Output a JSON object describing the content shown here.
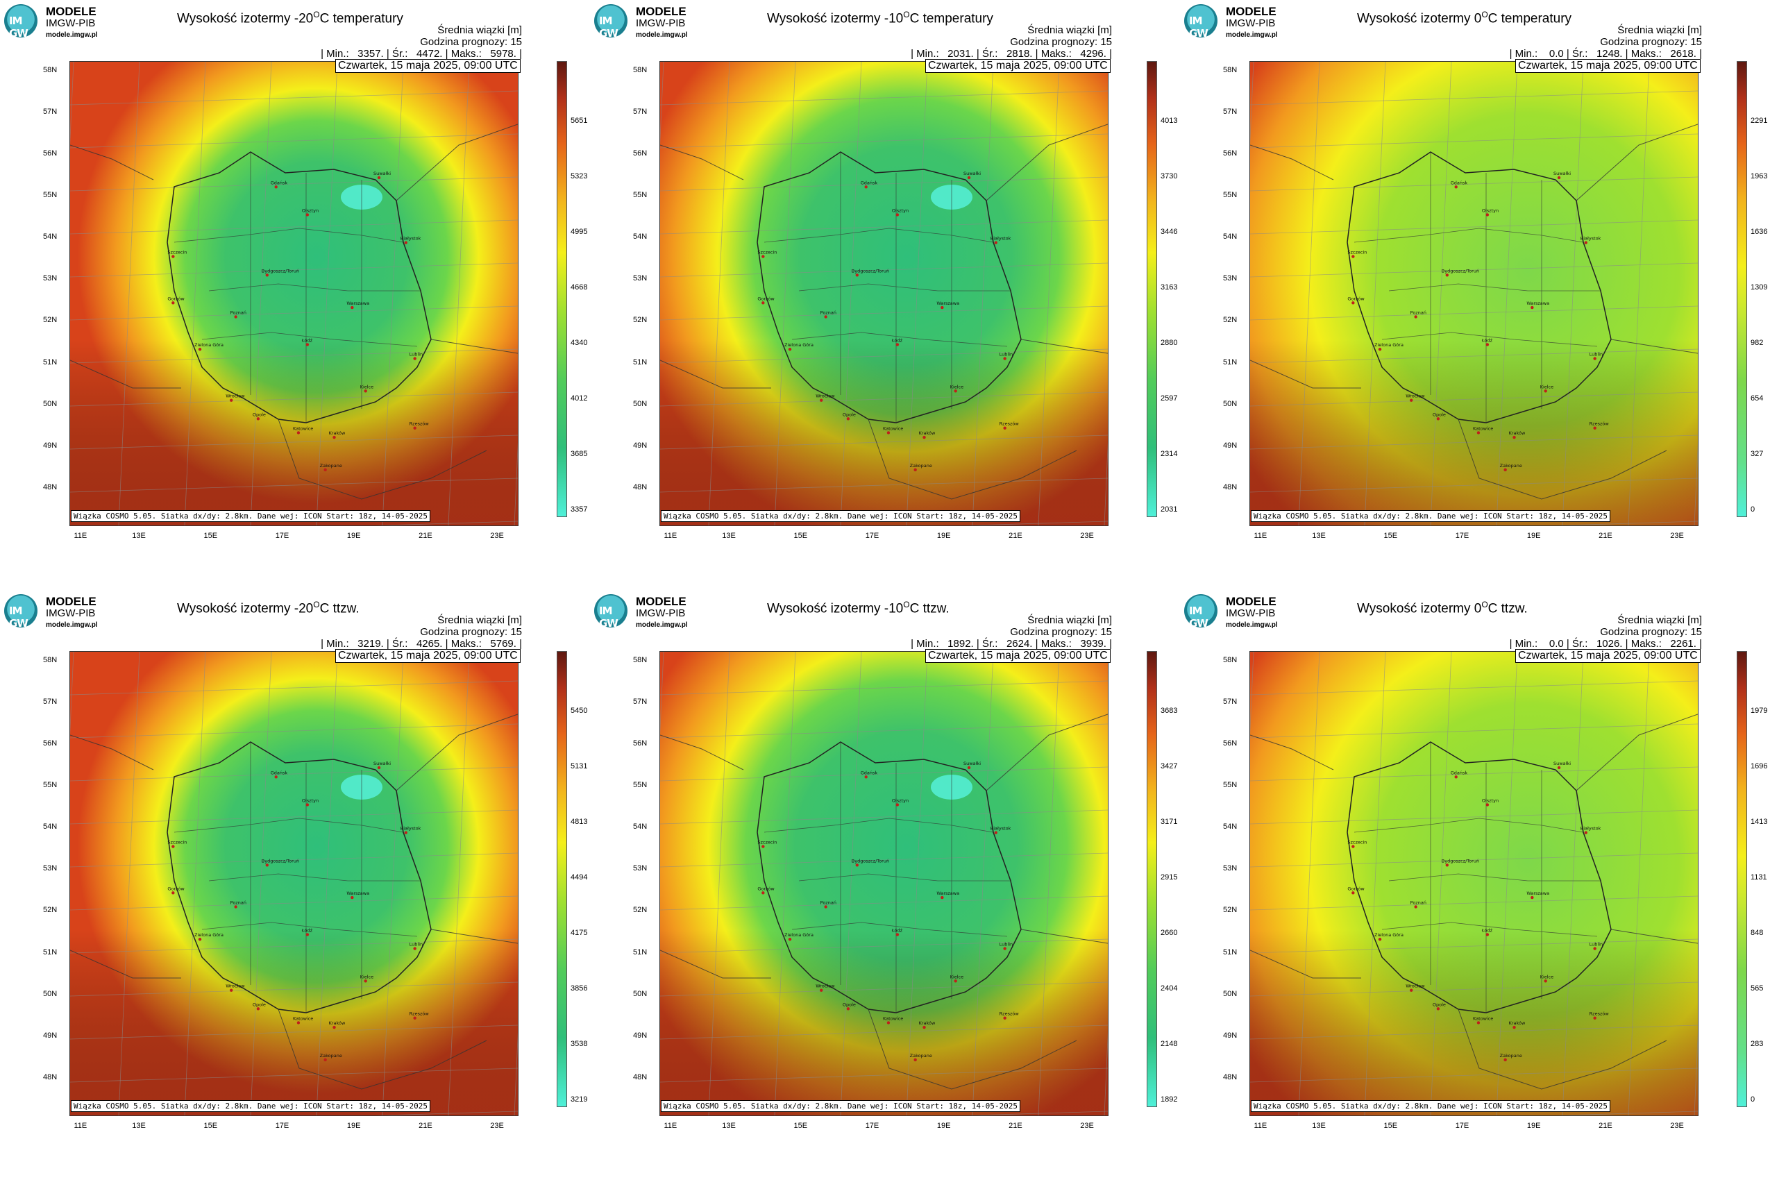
{
  "logo": {
    "line1": "MODELE",
    "line2": "IMGW-PIB",
    "line3": "modele.imgw.pl",
    "mark": "IM GW"
  },
  "panels": [
    {
      "id": "p1",
      "title_pre": "Wysokość izotermy -20",
      "title_post": "C temperatury",
      "stats_head": "Średnia wiązki [m]",
      "stats_hour": "Godzina prognozy: 15",
      "stats_vals": "| Min.:   3357. | Śr.:   4472. | Maks.:   5978. |",
      "date": "Czwartek, 15 maja 2025, 09:00 UTC",
      "footer": "Wiązka COSMO 5.05. Siatka dx/dy: 2.8km. Dane wej: ICON Start: 18z, 14-05-2025",
      "cbar": [
        "5651",
        "5323",
        "4995",
        "4668",
        "4340",
        "4012",
        "3685",
        "3357"
      ],
      "scheme": "cold",
      "core": 0.86
    },
    {
      "id": "p2",
      "title_pre": "Wysokość izotermy -10",
      "title_post": "C temperatury",
      "stats_head": "Średnia wiązki [m]",
      "stats_hour": "Godzina prognozy: 15",
      "stats_vals": "| Min.:   2031. | Śr.:   2818. | Maks.:   4296. |",
      "date": "Czwartek, 15 maja 2025, 09:00 UTC",
      "footer": "Wiązka COSMO 5.05. Siatka dx/dy: 2.8km. Dane wej: ICON Start: 18z, 14-05-2025",
      "cbar": [
        "4013",
        "3730",
        "3446",
        "3163",
        "2880",
        "2597",
        "2314",
        "2031"
      ],
      "scheme": "cold",
      "core": 1.0
    },
    {
      "id": "p3",
      "title_pre": "Wysokość izotermy 0",
      "title_post": "C temperatury",
      "stats_head": "Średnia wiązki [m]",
      "stats_hour": "Godzina prognozy: 15",
      "stats_vals": "| Min.:    0.0 | Śr.:   1248. | Maks.:   2618. |",
      "date": "Czwartek, 15 maja 2025, 09:00 UTC",
      "footer": "Wiązka COSMO 5.05. Siatka dx/dy: 2.8km. Dane wej: ICON Start: 18z, 14-05-2025",
      "cbar": [
        "2291",
        "1963",
        "1636",
        "1309",
        "982",
        "654",
        "327",
        "0"
      ],
      "scheme": "warm",
      "core": 0.7
    },
    {
      "id": "p4",
      "title_pre": "Wysokość izotermy -20",
      "title_post": "C ttzw.",
      "stats_head": "Średnia wiązki [m]",
      "stats_hour": "Godzina prognozy: 15",
      "stats_vals": "| Min.:   3219. | Śr.:   4265. | Maks.:   5769. |",
      "date": "Czwartek, 15 maja 2025, 09:00 UTC",
      "footer": "Wiązka COSMO 5.05. Siatka dx/dy: 2.8km. Dane wej: ICON Start: 18z, 14-05-2025",
      "cbar": [
        "5450",
        "5131",
        "4813",
        "4494",
        "4175",
        "3856",
        "3538",
        "3219"
      ],
      "scheme": "cold",
      "core": 0.86
    },
    {
      "id": "p5",
      "title_pre": "Wysokość izotermy -10",
      "title_post": "C ttzw.",
      "stats_head": "Średnia wiązki [m]",
      "stats_hour": "Godzina prognozy: 15",
      "stats_vals": "| Min.:   1892. | Śr.:   2624. | Maks.:   3939. |",
      "date": "Czwartek, 15 maja 2025, 09:00 UTC",
      "footer": "Wiązka COSMO 5.05. Siatka dx/dy: 2.8km. Dane wej: ICON Start: 18z, 14-05-2025",
      "cbar": [
        "3683",
        "3427",
        "3171",
        "2915",
        "2660",
        "2404",
        "2148",
        "1892"
      ],
      "scheme": "cold",
      "core": 1.05
    },
    {
      "id": "p6",
      "title_pre": "Wysokość izotermy 0",
      "title_post": "C ttzw.",
      "stats_head": "Średnia wiązki [m]",
      "stats_hour": "Godzina prognozy: 15",
      "stats_vals": "| Min.:    0.0 | Śr.:   1026. | Maks.:   2261. |",
      "date": "Czwartek, 15 maja 2025, 09:00 UTC",
      "footer": "Wiązka COSMO 5.05. Siatka dx/dy: 2.8km. Dane wej: ICON Start: 18z, 14-05-2025",
      "cbar": [
        "1979",
        "1696",
        "1413",
        "1131",
        "848",
        "565",
        "283",
        "0"
      ],
      "scheme": "warm",
      "core": 0.8
    }
  ],
  "lat_labels": [
    "58N",
    "57N",
    "56N",
    "55N",
    "54N",
    "53N",
    "52N",
    "51N",
    "50N",
    "49N",
    "48N"
  ],
  "lon_labels": [
    "11E",
    "13E",
    "15E",
    "17E",
    "19E",
    "21E",
    "23E"
  ],
  "degree_mark": "O",
  "cities": [
    {
      "name": "Gdańsk"
    },
    {
      "name": "Suwałki"
    },
    {
      "name": "Olsztyn"
    },
    {
      "name": "Białystok"
    },
    {
      "name": "Szczecin"
    },
    {
      "name": "Bydgoszcz/Toruń"
    },
    {
      "name": "Gorzów"
    },
    {
      "name": "Poznań"
    },
    {
      "name": "Warszawa"
    },
    {
      "name": "Zielona Góra"
    },
    {
      "name": "Łódź"
    },
    {
      "name": "Lublin"
    },
    {
      "name": "Wrocław"
    },
    {
      "name": "Kielce"
    },
    {
      "name": "Opole"
    },
    {
      "name": "Katowice"
    },
    {
      "name": "Kraków"
    },
    {
      "name": "Rzeszów"
    },
    {
      "name": "Zakopane"
    }
  ],
  "colors": {
    "cold_core": "#2fbf7a",
    "mid_green": "#6cd64a",
    "yellow": "#f4ef1a",
    "orange": "#f29a1e",
    "red": "#d8431a",
    "dark": "#7a1f12",
    "warm_green": "#7ed84a"
  }
}
